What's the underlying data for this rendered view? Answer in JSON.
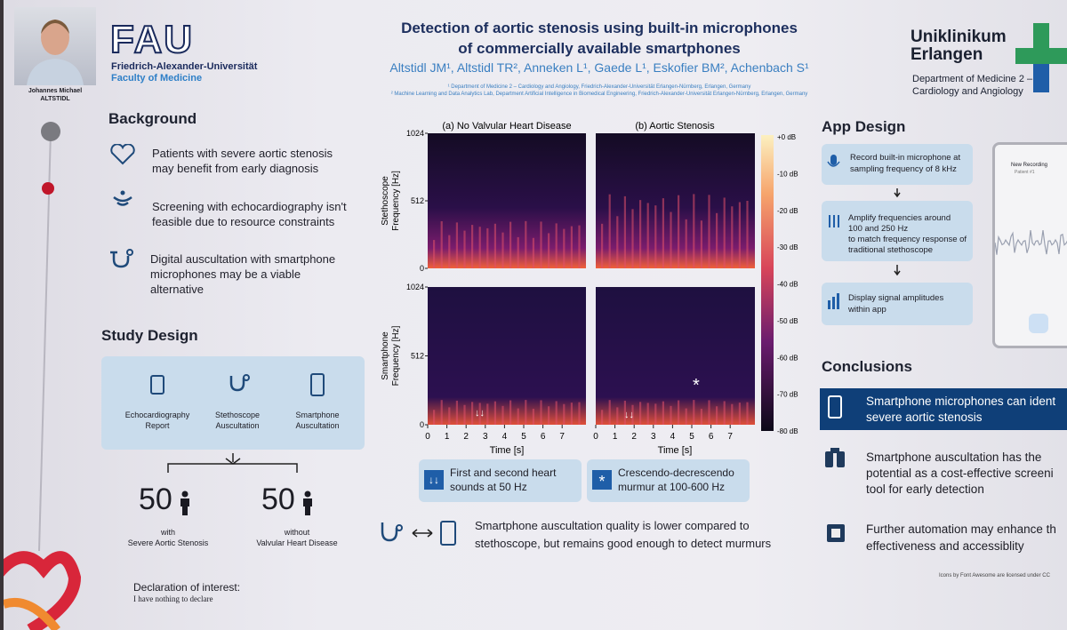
{
  "presenter": {
    "name": "Johannes Michael",
    "surname": "ALTSTIDL"
  },
  "logos": {
    "fau": "FAU",
    "fau_name": "Friedrich-Alexander-Universität",
    "fau_faculty": "Faculty of Medicine",
    "uk": [
      "Uniklinikum",
      "Erlangen"
    ],
    "uk_dept": [
      "Department of Medicine 2 –",
      "Cardiology and Angiology"
    ]
  },
  "header": {
    "title": [
      "Detection of aortic stenosis using built-in microphones",
      "of commercially available smartphones"
    ],
    "authors": "Altstidl JM¹, Altstidl TR², Anneken L¹, Gaede L¹, Eskofier BM², Achenbach S¹",
    "affiliations": [
      "¹ Department of Medicine 2 – Cardiology and Angiology, Friedrich-Alexander-Universität Erlangen-Nürnberg, Erlangen, Germany",
      "² Machine Learning and Data Analytics Lab, Department Artificial Intelligence in Biomedical Engineering, Friedrich-Alexander-Universität Erlangen-Nürnberg, Erlangen, Germany"
    ]
  },
  "background": {
    "heading": "Background",
    "items": [
      [
        "Patients with severe aortic stenosis",
        "may benefit from early diagnosis"
      ],
      [
        "Screening with echocardiography isn't",
        "feasible due to resource constraints"
      ],
      [
        "Digital auscultation with smartphone",
        "microphones may be a viable",
        "alternative"
      ]
    ]
  },
  "study_design": {
    "heading": "Study Design",
    "boxes": [
      [
        "Echocardiography",
        "Report"
      ],
      [
        "Stethoscope",
        "Auscultation"
      ],
      [
        "Smartphone",
        "Auscultation"
      ]
    ],
    "groups": [
      {
        "count": 50,
        "label": [
          "with",
          "Severe Aortic Stenosis"
        ]
      },
      {
        "count": 50,
        "label": [
          "without",
          "Valvular Heart Disease"
        ]
      }
    ]
  },
  "declaration": {
    "heading": "Declaration of interest:",
    "text": "I have nothing to declare"
  },
  "figure": {
    "panels": [
      "(a) No Valvular Heart Disease",
      "(b) Aortic Stenosis"
    ],
    "y_labels": [
      [
        "Stethoscope",
        "Frequency [Hz]"
      ],
      [
        "Smartphone",
        "Frequency [Hz]"
      ]
    ],
    "y_ticks": [
      "1024",
      "512",
      "0"
    ],
    "x_ticks": [
      "0",
      "1",
      "2",
      "3",
      "4",
      "5",
      "6",
      "7"
    ],
    "x_label": "Time [s]",
    "colorbar_ticks": [
      "+0 dB",
      "-10 dB",
      "-20 dB",
      "-30 dB",
      "-40 dB",
      "-50 dB",
      "-60 dB",
      "-70 dB",
      "-80 dB"
    ],
    "markers": [
      "↓↓",
      "↓↓",
      "*"
    ],
    "legend": [
      {
        "symbol": "↓↓",
        "text": [
          "First and second heart",
          "sounds at 50 Hz"
        ]
      },
      {
        "symbol": "*",
        "text": [
          "Crescendo-decrescendo",
          "murmur at 100-600 Hz"
        ]
      }
    ],
    "summary": [
      "Smartphone auscultation quality is lower compared to",
      "stethoscope, but remains good enough to detect murmurs"
    ]
  },
  "app_design": {
    "heading": "App Design",
    "steps": [
      [
        "Record built-in microphone at",
        "sampling frequency of 8 kHz"
      ],
      [
        "Amplify frequencies around",
        "100 and 250 Hz",
        "to match frequency response of",
        "traditional stethoscope"
      ],
      [
        "Display signal amplitudes",
        "within app"
      ]
    ],
    "phone": {
      "title": "New Recording",
      "subtitle": "Patient #1"
    }
  },
  "conclusions": {
    "heading": "Conclusions",
    "items": [
      [
        "Smartphone microphones can ident",
        "severe aortic stenosis"
      ],
      [
        "Smartphone auscultation has the",
        "potential as a cost-effective screeni",
        "tool for early detection"
      ],
      [
        "Further automation may enhance th",
        "effectiveness and accessiblity"
      ]
    ]
  },
  "footer": "Icons by Font Awesome are licensed under CC"
}
